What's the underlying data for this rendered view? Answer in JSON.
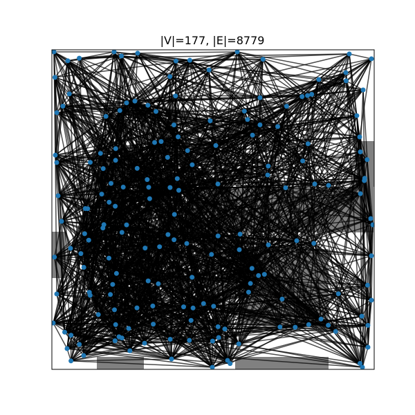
{
  "figure": {
    "title": "|V|=177, |E|=8779"
  },
  "graph": {
    "vertex_count": 177,
    "edge_count": 8779,
    "node_color": "#1f77b4",
    "edge_color": "#000000",
    "obstacle_color": "#808080"
  }
}
